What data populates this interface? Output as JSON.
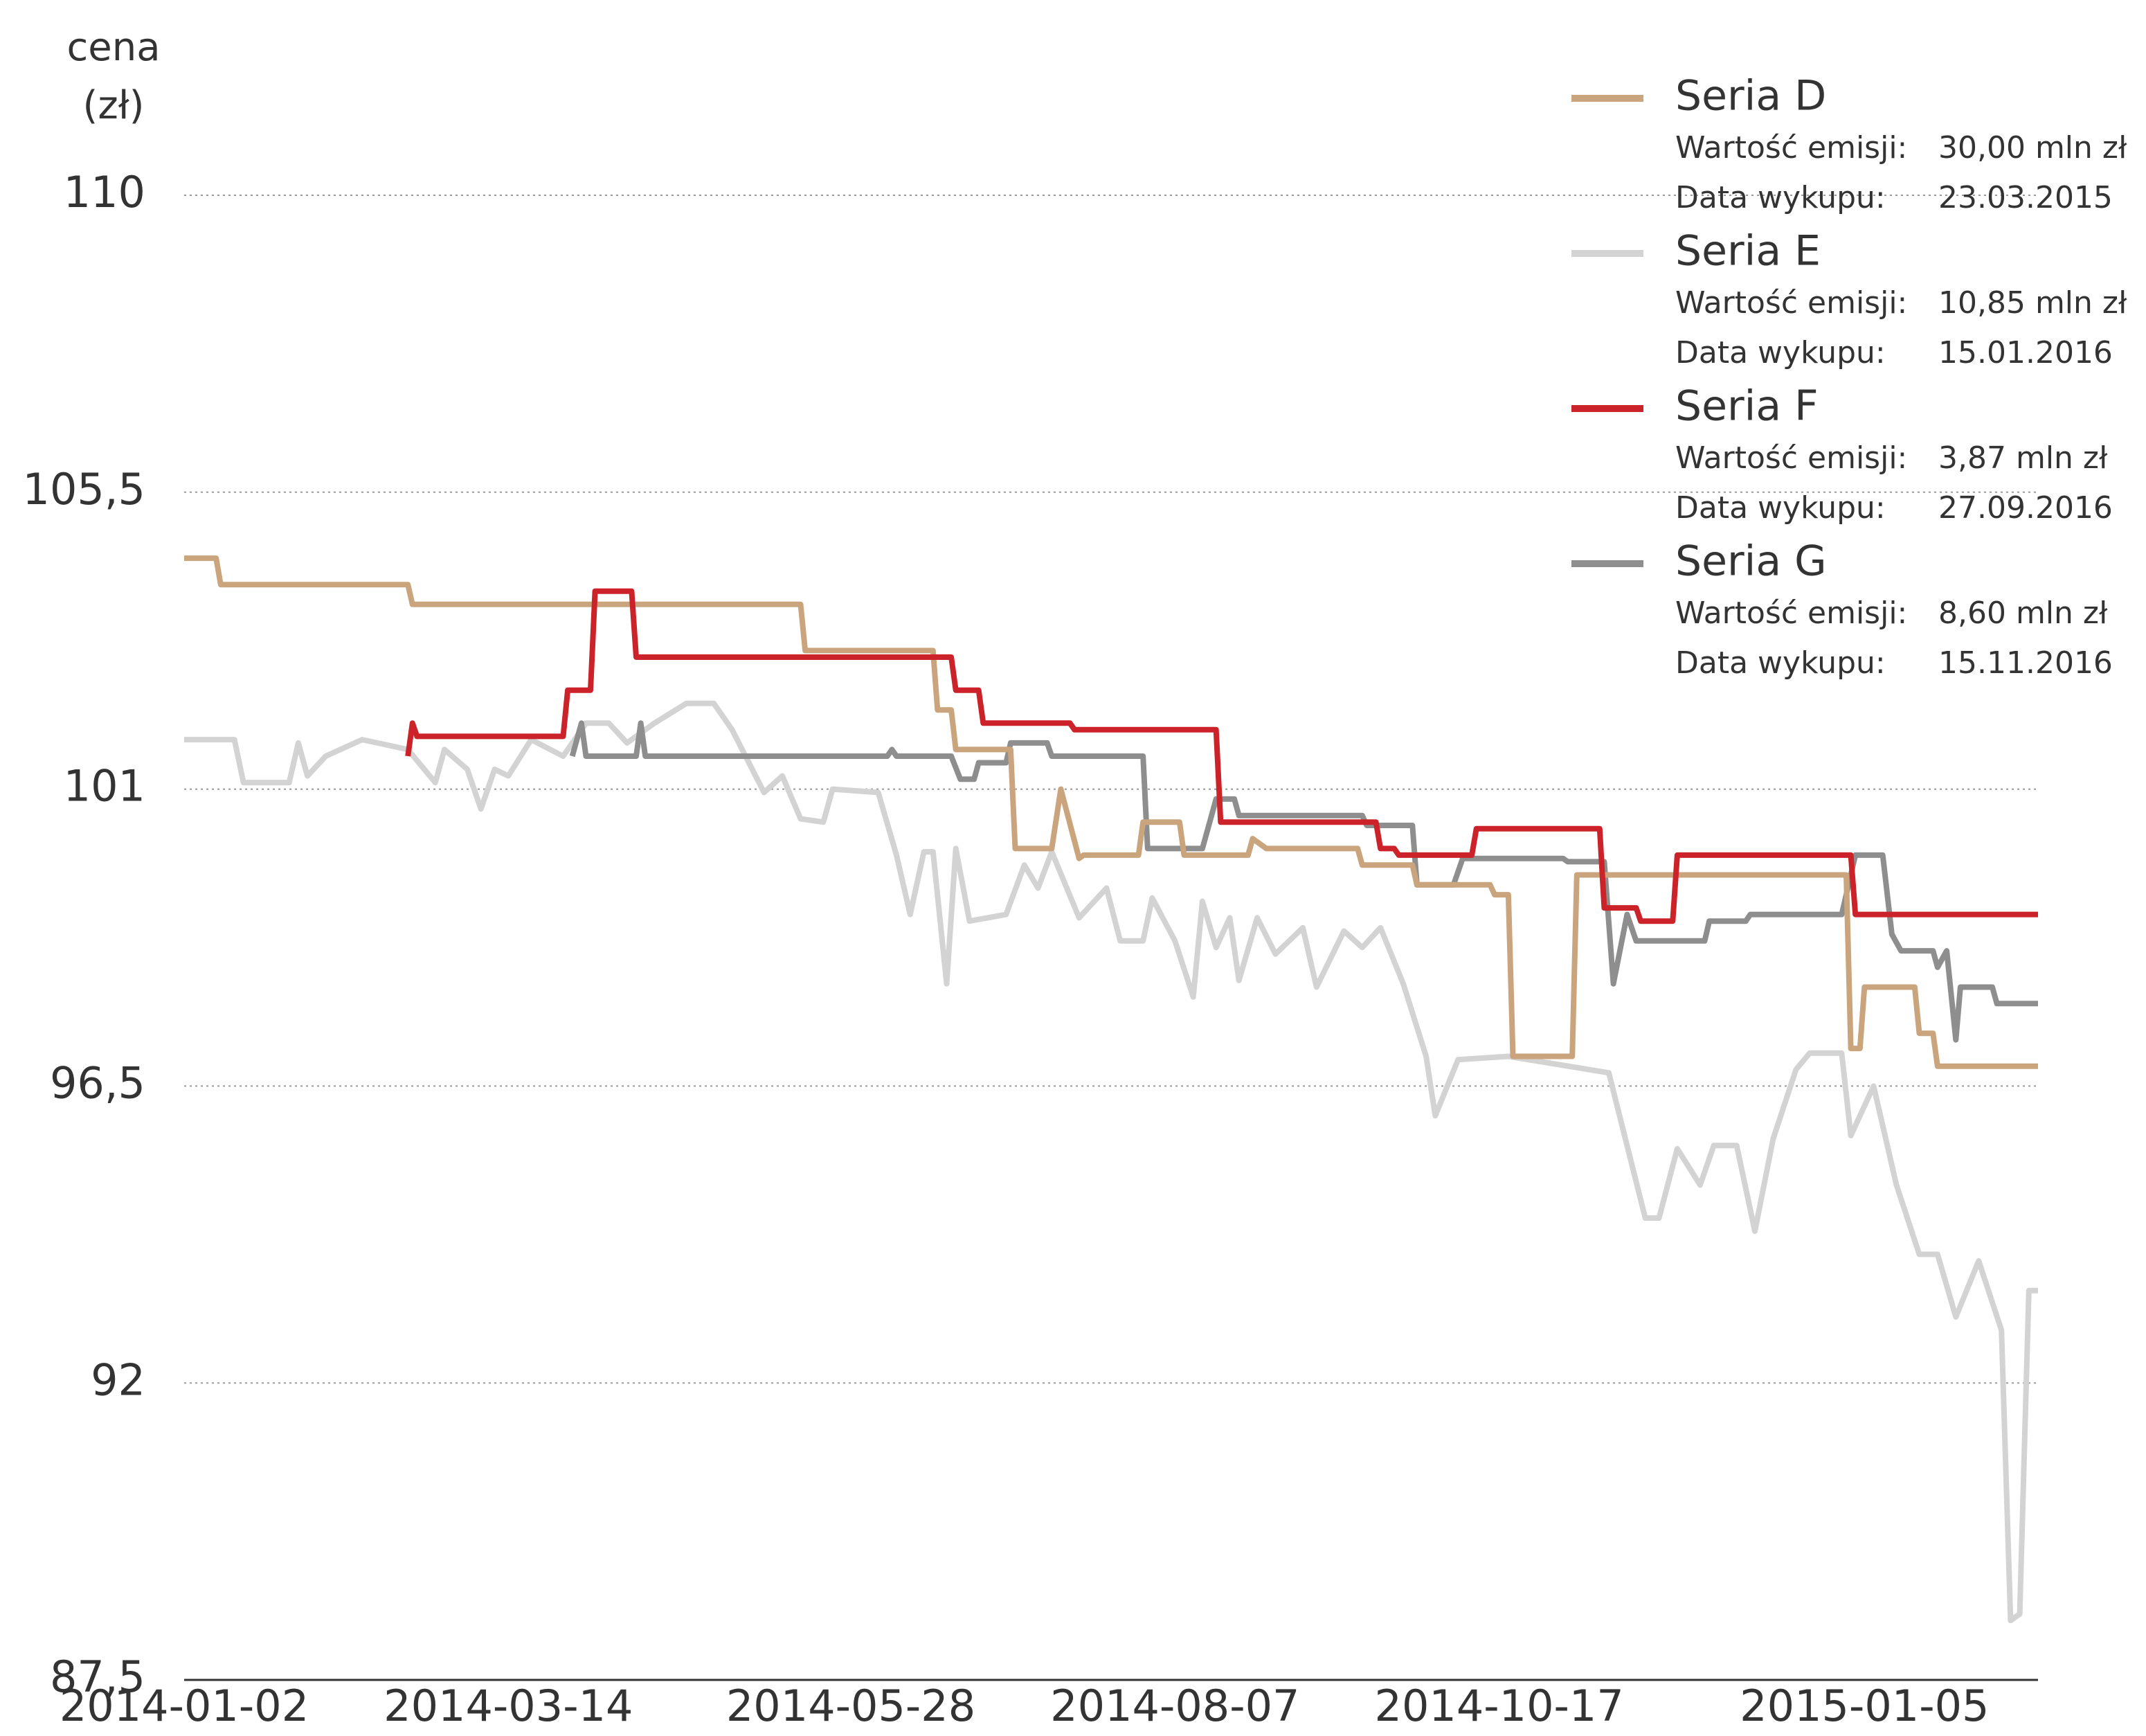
{
  "chart_data": {
    "type": "line",
    "y_label": [
      "cena",
      "(zł)"
    ],
    "legend_labels": {
      "value": "Wartość emisji:",
      "date": "Data wykupu:"
    },
    "xlim": [
      "2014-01-02",
      "2015-02-12"
    ],
    "xticks": [
      "2014-01-02",
      "2014-03-14",
      "2014-05-28",
      "2014-08-07",
      "2014-10-17",
      "2015-01-05"
    ],
    "ylim": [
      87.5,
      110
    ],
    "yticks": [
      {
        "value": 87.5,
        "label": "87,5"
      },
      92,
      {
        "value": 96.5,
        "label": "96,5"
      },
      101,
      {
        "value": 105.5,
        "label": "105,5"
      },
      110
    ],
    "grid": true,
    "series": [
      {
        "name": "Seria D",
        "color": "#c9a47c",
        "emission": "30,00 mln zł",
        "redemption": "23.03.2015",
        "x": [
          "2014-01-02",
          "2014-01-09",
          "2014-01-10",
          "2014-02-20",
          "2014-02-21",
          "2014-05-17",
          "2014-05-18",
          "2014-06-15",
          "2014-06-16",
          "2014-06-19",
          "2014-06-20",
          "2014-07-02",
          "2014-07-03",
          "2014-07-11",
          "2014-07-13",
          "2014-07-17",
          "2014-07-18",
          "2014-07-30",
          "2014-07-31",
          "2014-08-08",
          "2014-08-09",
          "2014-08-23",
          "2014-08-24",
          "2014-08-27",
          "2014-09-16",
          "2014-09-17",
          "2014-09-28",
          "2014-09-29",
          "2014-10-15",
          "2014-10-16",
          "2014-10-19",
          "2014-10-20",
          "2014-11-02",
          "2014-11-03",
          "2015-01-01",
          "2015-01-02",
          "2015-01-04",
          "2015-01-05",
          "2015-01-16",
          "2015-01-17",
          "2015-01-20",
          "2015-01-21",
          "2015-02-12"
        ],
        "values": [
          104.5,
          104.5,
          104.1,
          104.1,
          103.8,
          103.8,
          103.1,
          103.1,
          102.2,
          102.2,
          101.6,
          101.6,
          100.1,
          100.1,
          101.0,
          99.95,
          100.0,
          100.0,
          100.5,
          100.5,
          100.0,
          100.0,
          100.25,
          100.1,
          100.1,
          99.85,
          99.85,
          99.55,
          99.55,
          99.4,
          99.4,
          96.95,
          96.95,
          99.7,
          99.7,
          97.07,
          97.07,
          98.0,
          98.0,
          97.3,
          97.3,
          96.8,
          96.8
        ]
      },
      {
        "name": "Seria E",
        "color": "#d3d3d3",
        "emission": "10,85 mln zł",
        "redemption": "15.01.2016",
        "x": [
          "2014-01-02",
          "2014-01-13",
          "2014-01-15",
          "2014-01-25",
          "2014-01-27",
          "2014-01-29",
          "2014-02-02",
          "2014-02-10",
          "2014-02-20",
          "2014-02-26",
          "2014-02-28",
          "2014-03-05",
          "2014-03-08",
          "2014-03-11",
          "2014-03-14",
          "2014-03-19",
          "2014-03-26",
          "2014-03-31",
          "2014-04-05",
          "2014-04-09",
          "2014-04-15",
          "2014-04-22",
          "2014-04-28",
          "2014-05-02",
          "2014-05-09",
          "2014-05-13",
          "2014-05-17",
          "2014-05-22",
          "2014-05-24",
          "2014-06-03",
          "2014-06-07",
          "2014-06-10",
          "2014-06-13",
          "2014-06-15",
          "2014-06-18",
          "2014-06-20",
          "2014-06-23",
          "2014-07-01",
          "2014-07-05",
          "2014-07-08",
          "2014-07-11",
          "2014-07-17",
          "2014-07-23",
          "2014-07-26",
          "2014-07-31",
          "2014-08-02",
          "2014-08-07",
          "2014-08-11",
          "2014-08-13",
          "2014-08-16",
          "2014-08-19",
          "2014-08-21",
          "2014-08-25",
          "2014-08-29",
          "2014-09-04",
          "2014-09-07",
          "2014-09-13",
          "2014-09-17",
          "2014-09-21",
          "2014-09-26",
          "2014-10-01",
          "2014-10-03",
          "2014-10-08",
          "2014-10-19",
          "2014-11-10",
          "2014-11-18",
          "2014-11-21",
          "2014-11-25",
          "2014-11-30",
          "2014-12-03",
          "2014-12-08",
          "2014-12-12",
          "2014-12-16",
          "2014-12-21",
          "2014-12-24",
          "2014-12-31",
          "2015-01-02",
          "2015-01-07",
          "2015-01-12",
          "2015-01-17",
          "2015-01-21",
          "2015-01-25",
          "2015-01-30",
          "2015-02-04",
          "2015-02-06",
          "2015-02-08",
          "2015-02-10",
          "2015-02-12"
        ],
        "values": [
          101.75,
          101.75,
          101.1,
          101.1,
          101.7,
          101.2,
          101.5,
          101.75,
          101.6,
          101.1,
          101.6,
          101.3,
          100.7,
          101.3,
          101.2,
          101.75,
          101.5,
          102.0,
          102.0,
          101.7,
          102.0,
          102.3,
          102.3,
          101.9,
          100.95,
          101.2,
          100.55,
          100.5,
          101.0,
          100.95,
          100.0,
          99.1,
          100.05,
          100.05,
          98.05,
          100.1,
          99.0,
          99.1,
          99.85,
          99.5,
          100.05,
          99.05,
          99.5,
          98.7,
          98.7,
          99.35,
          98.7,
          97.85,
          99.3,
          98.6,
          99.05,
          98.1,
          99.05,
          98.5,
          98.9,
          98.0,
          98.85,
          98.6,
          98.9,
          98.05,
          96.95,
          96.05,
          96.9,
          96.95,
          96.7,
          94.5,
          94.5,
          95.55,
          95.0,
          95.6,
          95.6,
          94.3,
          95.7,
          96.75,
          97.0,
          97.0,
          95.75,
          96.5,
          95.0,
          93.95,
          93.95,
          93.0,
          93.85,
          92.8,
          88.4,
          88.5,
          93.4,
          93.4
        ]
      },
      {
        "name": "Seria F",
        "color": "#cc2229",
        "emission": "3,87 mln zł",
        "redemption": "27.09.2016",
        "x": [
          "2014-02-20",
          "2014-02-21",
          "2014-02-22",
          "2014-03-26",
          "2014-03-27",
          "2014-04-01",
          "2014-04-02",
          "2014-04-10",
          "2014-04-11",
          "2014-06-19",
          "2014-06-20",
          "2014-06-25",
          "2014-06-26",
          "2014-07-15",
          "2014-07-16",
          "2014-08-16",
          "2014-08-17",
          "2014-09-20",
          "2014-09-21",
          "2014-09-24",
          "2014-09-25",
          "2014-10-11",
          "2014-10-12",
          "2014-11-08",
          "2014-11-09",
          "2014-11-16",
          "2014-11-17",
          "2014-11-24",
          "2014-11-25",
          "2015-01-02",
          "2015-01-03",
          "2015-02-12"
        ],
        "values": [
          101.5,
          102.0,
          101.8,
          101.8,
          102.5,
          102.5,
          104.0,
          104.0,
          103.0,
          103.0,
          102.5,
          102.5,
          102.0,
          102.0,
          101.9,
          101.9,
          100.5,
          100.5,
          100.1,
          100.1,
          100.0,
          100.0,
          100.4,
          100.4,
          99.2,
          99.2,
          99.0,
          99.0,
          100.0,
          100.0,
          99.1,
          99.1
        ]
      },
      {
        "name": "Seria G",
        "color": "#8e8e8e",
        "emission": "8,60 mln zł",
        "redemption": "15.11.2016",
        "x": [
          "2014-03-28",
          "2014-03-30",
          "2014-03-31",
          "2014-04-11",
          "2014-04-12",
          "2014-04-13",
          "2014-06-05",
          "2014-06-06",
          "2014-06-07",
          "2014-06-19",
          "2014-06-21",
          "2014-06-24",
          "2014-06-25",
          "2014-07-01",
          "2014-07-02",
          "2014-07-10",
          "2014-07-11",
          "2014-07-31",
          "2014-08-01",
          "2014-08-13",
          "2014-08-16",
          "2014-08-20",
          "2014-08-21",
          "2014-09-17",
          "2014-09-18",
          "2014-09-28",
          "2014-09-29",
          "2014-10-07",
          "2014-10-09",
          "2014-10-31",
          "2014-11-01",
          "2014-11-09",
          "2014-11-11",
          "2014-11-14",
          "2014-11-16",
          "2014-12-01",
          "2014-12-02",
          "2014-12-10",
          "2014-12-11",
          "2014-12-31",
          "2015-01-03",
          "2015-01-09",
          "2015-01-11",
          "2015-01-13",
          "2015-01-20",
          "2015-01-21",
          "2015-01-23",
          "2015-01-25",
          "2015-01-26",
          "2015-02-02",
          "2015-02-03",
          "2015-02-12"
        ],
        "values": [
          101.5,
          102.0,
          101.5,
          101.5,
          102.0,
          101.5,
          101.5,
          101.6,
          101.5,
          101.5,
          101.15,
          101.15,
          101.4,
          101.4,
          101.7,
          101.7,
          101.5,
          101.5,
          100.1,
          100.1,
          100.85,
          100.85,
          100.6,
          100.6,
          100.45,
          100.45,
          99.55,
          99.55,
          99.95,
          99.95,
          99.9,
          99.9,
          98.05,
          99.1,
          98.7,
          98.7,
          99.0,
          99.0,
          99.1,
          99.1,
          100.0,
          100.0,
          98.8,
          98.55,
          98.55,
          98.3,
          98.55,
          97.2,
          98.0,
          98.0,
          97.75,
          97.75
        ]
      }
    ]
  }
}
